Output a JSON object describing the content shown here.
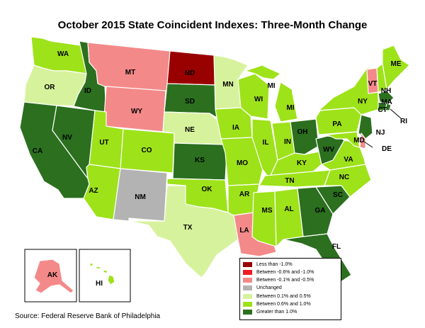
{
  "title": "October 2015 State Coincident Indexes: Three-Month Change",
  "source": "Source: Federal Reserve Bank of Philadelphia",
  "colors": {
    "lt_neg1": "#990000",
    "neg1_to_neg06": "#ee1c24",
    "neg05_to_neg01": "#f48989",
    "unchanged": "#b3b3b3",
    "pos01_to_05": "#d7f29d",
    "pos06_to_1": "#9ee21a",
    "gt_1": "#2b6f1f"
  },
  "legend": [
    {
      "label": "Less than -1.0%",
      "color": "#990000"
    },
    {
      "label": "Between -0.6% and -1.0%",
      "color": "#ee1c24"
    },
    {
      "label": "Between -0.1% and -0.5%",
      "color": "#f48989"
    },
    {
      "label": "Unchanged",
      "color": "#b3b3b3"
    },
    {
      "label": "Between 0.1% and 0.5%",
      "color": "#d7f29d"
    },
    {
      "label": "Between 0.6% and 1.0%",
      "color": "#9ee21a"
    },
    {
      "label": "Greater than 1.0%",
      "color": "#2b6f1f"
    }
  ],
  "states": {
    "WA": {
      "label": "WA",
      "category": "Between 0.6% and 1.0%"
    },
    "OR": {
      "label": "OR",
      "category": "Between 0.1% and 0.5%"
    },
    "CA": {
      "label": "CA",
      "category": "Greater than 1.0%"
    },
    "NV": {
      "label": "NV",
      "category": "Greater than 1.0%"
    },
    "ID": {
      "label": "ID",
      "category": "Greater than 1.0%"
    },
    "MT": {
      "label": "MT",
      "category": "Between -0.1% and -0.5%"
    },
    "WY": {
      "label": "WY",
      "category": "Between -0.1% and -0.5%"
    },
    "UT": {
      "label": "UT",
      "category": "Between 0.6% and 1.0%"
    },
    "AZ": {
      "label": "AZ",
      "category": "Between 0.6% and 1.0%"
    },
    "CO": {
      "label": "CO",
      "category": "Between 0.6% and 1.0%"
    },
    "NM": {
      "label": "NM",
      "category": "Unchanged"
    },
    "ND": {
      "label": "ND",
      "category": "Less than -1.0%"
    },
    "SD": {
      "label": "SD",
      "category": "Greater than 1.0%"
    },
    "NE": {
      "label": "NE",
      "category": "Between 0.1% and 0.5%"
    },
    "KS": {
      "label": "KS",
      "category": "Greater than 1.0%"
    },
    "OK": {
      "label": "OK",
      "category": "Between 0.6% and 1.0%"
    },
    "TX": {
      "label": "TX",
      "category": "Between 0.1% and 0.5%"
    },
    "MN": {
      "label": "MN",
      "category": "Between 0.1% and 0.5%"
    },
    "IA": {
      "label": "IA",
      "category": "Between 0.6% and 1.0%"
    },
    "MO": {
      "label": "MO",
      "category": "Between 0.6% and 1.0%"
    },
    "AR": {
      "label": "AR",
      "category": "Between 0.6% and 1.0%"
    },
    "LA": {
      "label": "LA",
      "category": "Between -0.1% and -0.5%"
    },
    "WI": {
      "label": "WI",
      "category": "Between 0.6% and 1.0%"
    },
    "IL": {
      "label": "IL",
      "category": "Between 0.6% and 1.0%"
    },
    "MI": {
      "label": "MI",
      "category": "Between 0.6% and 1.0%"
    },
    "IN": {
      "label": "IN",
      "category": "Between 0.6% and 1.0%"
    },
    "OH": {
      "label": "OH",
      "category": "Greater than 1.0%"
    },
    "KY": {
      "label": "KY",
      "category": "Between 0.6% and 1.0%"
    },
    "TN": {
      "label": "TN",
      "category": "Between 0.6% and 1.0%"
    },
    "MS": {
      "label": "MS",
      "category": "Between 0.6% and 1.0%"
    },
    "AL": {
      "label": "AL",
      "category": "Between 0.6% and 1.0%"
    },
    "GA": {
      "label": "GA",
      "category": "Greater than 1.0%"
    },
    "FL": {
      "label": "FL",
      "category": "Greater than 1.0%"
    },
    "SC": {
      "label": "SC",
      "category": "Greater than 1.0%"
    },
    "NC": {
      "label": "NC",
      "category": "Between 0.6% and 1.0%"
    },
    "VA": {
      "label": "VA",
      "category": "Between 0.6% and 1.0%"
    },
    "WV": {
      "label": "WV",
      "category": "Greater than 1.0%"
    },
    "PA": {
      "label": "PA",
      "category": "Between 0.6% and 1.0%"
    },
    "NY": {
      "label": "NY",
      "category": "Between 0.6% and 1.0%"
    },
    "VT": {
      "label": "VT",
      "category": "Between -0.1% and -0.5%"
    },
    "NH": {
      "label": "NH",
      "category": "Between 0.6% and 1.0%"
    },
    "ME": {
      "label": "ME",
      "category": "Between 0.6% and 1.0%"
    },
    "MA": {
      "label": "MA",
      "category": "Greater than 1.0%"
    },
    "CT": {
      "label": "CT",
      "category": "Greater than 1.0%"
    },
    "RI": {
      "label": "RI",
      "category": "Greater than 1.0%"
    },
    "NJ": {
      "label": "NJ",
      "category": "Greater than 1.0%"
    },
    "DE": {
      "label": "DE",
      "category": "Between -0.1% and -0.5%"
    },
    "MD": {
      "label": "MD",
      "category": "Between 0.6% and 1.0%"
    },
    "AK": {
      "label": "AK",
      "category": "Between -0.1% and -0.5%"
    },
    "HI": {
      "label": "HI",
      "category": "Between 0.6% and 1.0%"
    }
  }
}
